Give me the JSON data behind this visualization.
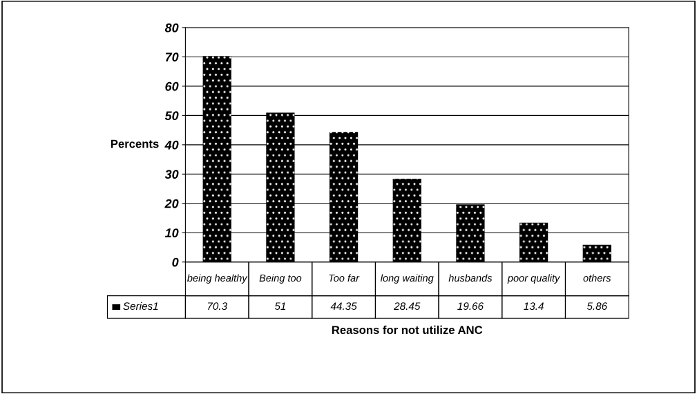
{
  "chart_data": {
    "type": "bar",
    "xlabel": "Reasons for not utilize ANC",
    "ylabel": "Percents",
    "categories": [
      "being healthy",
      "Being too",
      "Too far",
      "long waiting",
      "husbands",
      "poor quality",
      "others"
    ],
    "series": [
      {
        "name": "Series1",
        "color": "#000000",
        "values": [
          70.3,
          51,
          44.35,
          28.45,
          19.66,
          13.4,
          5.86
        ]
      }
    ],
    "ylim": [
      0,
      80
    ],
    "yticks": [
      0,
      10,
      20,
      30,
      40,
      50,
      60,
      70,
      80
    ],
    "grid": "y",
    "data_labels": true
  }
}
